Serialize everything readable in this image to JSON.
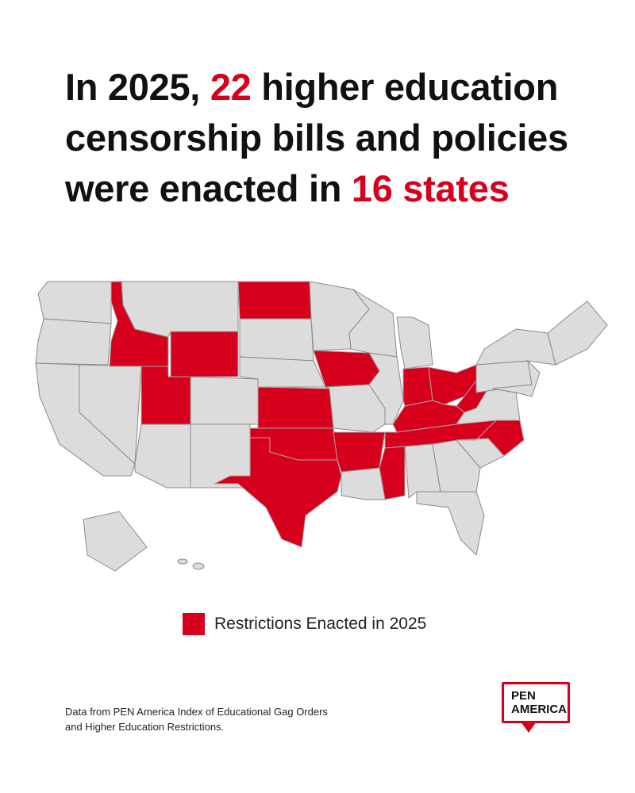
{
  "title": {
    "lines": [
      [
        "In 2025, ",
        "22",
        " higher education"
      ],
      [
        "censorship bills and policies"
      ],
      [
        "were enacted in ",
        "16 states"
      ]
    ]
  },
  "highlight_color": "#d6001c",
  "legend": {
    "label": "Restrictions Enacted in 2025"
  },
  "source": {
    "lines": [
      "Data from PEN America Index of Educational Gag Orders",
      "and Higher Education Restrictions."
    ]
  },
  "logo": {
    "lines": [
      "PEN",
      "AMERICA"
    ]
  }
}
